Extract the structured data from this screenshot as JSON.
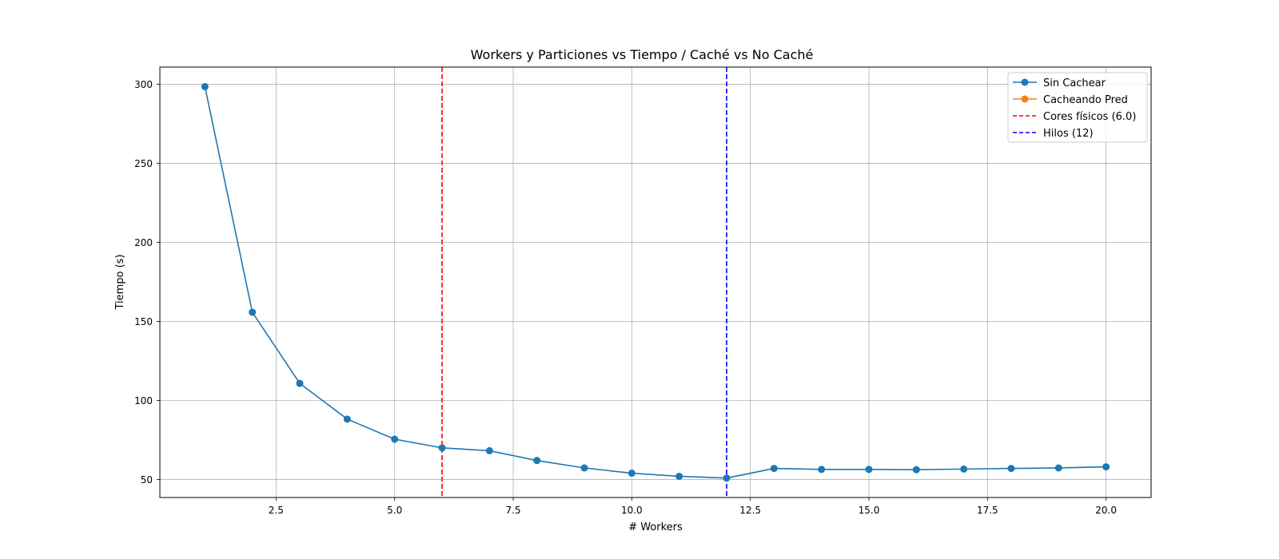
{
  "chart_data": {
    "type": "line",
    "title": "Workers y Particiones vs Tiempo / Caché vs No Caché",
    "xlabel": "# Workers",
    "ylabel": "Tiempo (s)",
    "xlim": [
      0.05,
      20.95
    ],
    "ylim": [
      38.6,
      310.9
    ],
    "xticks": [
      2.5,
      5.0,
      7.5,
      10.0,
      12.5,
      15.0,
      17.5,
      20.0
    ],
    "xtick_labels": [
      "2.5",
      "5.0",
      "7.5",
      "10.0",
      "12.5",
      "15.0",
      "17.5",
      "20.0"
    ],
    "yticks": [
      50,
      100,
      150,
      200,
      250,
      300
    ],
    "ytick_labels": [
      "50",
      "100",
      "150",
      "200",
      "250",
      "300"
    ],
    "grid": true,
    "legend_position": "top-right",
    "series": [
      {
        "name": "Sin Cachear",
        "color": "#1f77b4",
        "marker": "circle",
        "x": [
          1,
          2,
          3,
          4,
          5,
          6,
          7,
          8,
          9,
          10,
          11,
          12,
          13,
          14,
          15,
          16,
          17,
          18,
          19,
          20
        ],
        "y": [
          298.5,
          155.8,
          110.8,
          88.2,
          75.5,
          70.0,
          68.2,
          62.0,
          57.3,
          54.0,
          52.0,
          50.9,
          57.0,
          56.4,
          56.4,
          56.2,
          56.6,
          57.0,
          57.3,
          58.0
        ]
      },
      {
        "name": "Cacheando Pred",
        "color": "#ff7f0e",
        "marker": "circle",
        "x": [],
        "y": []
      }
    ],
    "vlines": [
      {
        "name": "Cores físicos (6.0)",
        "x": 6.0,
        "color": "#ff0000",
        "style": "dashed"
      },
      {
        "name": "Hilos (12)",
        "x": 12,
        "color": "#0000ff",
        "style": "dashed"
      }
    ]
  }
}
